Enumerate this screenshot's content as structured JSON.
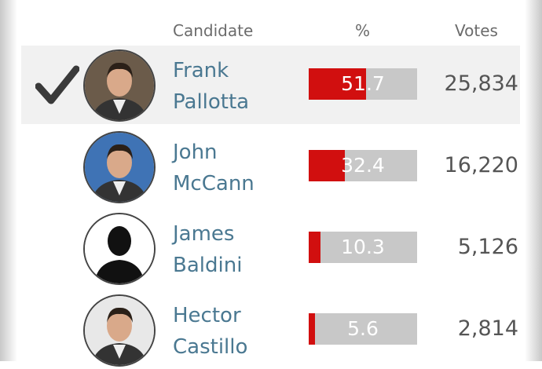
{
  "headers": {
    "candidate": "Candidate",
    "percent": "%",
    "votes": "Votes"
  },
  "colors": {
    "bar_fill": "#d10f0f",
    "bar_track": "#c8c8c8",
    "name": "#4a7891",
    "winner_bg": "#f1f1f1"
  },
  "candidates": [
    {
      "first": "Frank",
      "last": "Pallotta",
      "percent": "51.7",
      "percent_value": 51.7,
      "votes": "25,834",
      "winner": true,
      "avatar": "photo",
      "avatar_bg": "#6b5b4a"
    },
    {
      "first": "John",
      "last": "McCann",
      "percent": "32.4",
      "percent_value": 32.4,
      "votes": "16,220",
      "winner": false,
      "avatar": "photo",
      "avatar_bg": "#3f73b5"
    },
    {
      "first": "James",
      "last": "Baldini",
      "percent": "10.3",
      "percent_value": 10.3,
      "votes": "5,126",
      "winner": false,
      "avatar": "silhouette",
      "avatar_bg": "#ffffff"
    },
    {
      "first": "Hector",
      "last": "Castillo",
      "percent": "5.6",
      "percent_value": 5.6,
      "votes": "2,814",
      "winner": false,
      "avatar": "photo",
      "avatar_bg": "#e8e8e8"
    }
  ]
}
